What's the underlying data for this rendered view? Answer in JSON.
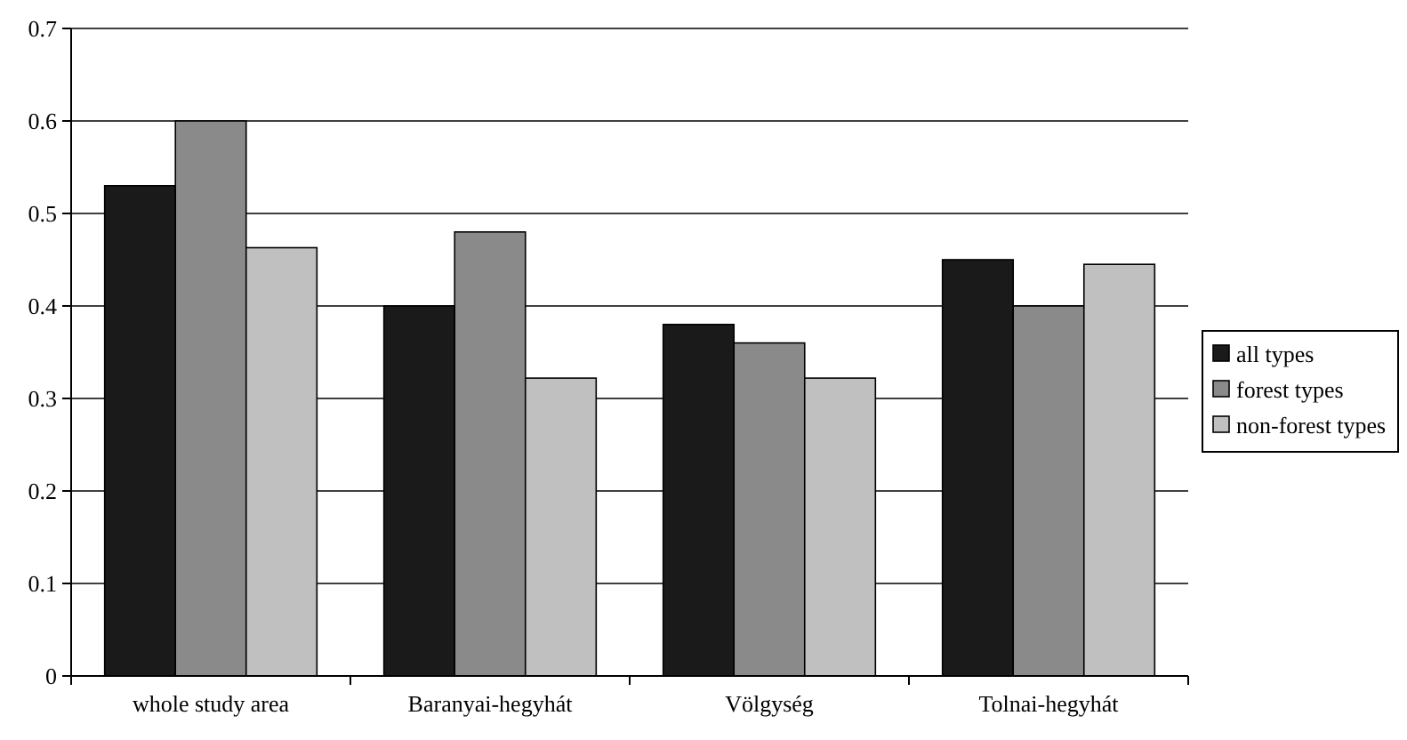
{
  "chart_data": {
    "type": "bar",
    "categories": [
      "whole study area",
      "Baranyai-hegyhát",
      "Völgység",
      "Tolnai-hegyhát"
    ],
    "series": [
      {
        "name": "all types",
        "color": "#1a1a1a",
        "values": [
          0.53,
          0.4,
          0.38,
          0.45
        ]
      },
      {
        "name": "forest types",
        "color": "#8a8a8a",
        "values": [
          0.6,
          0.48,
          0.36,
          0.4
        ]
      },
      {
        "name": "non-forest types",
        "color": "#c0c0c0",
        "values": [
          0.463,
          0.322,
          0.322,
          0.445
        ]
      }
    ],
    "ylim": [
      0,
      0.7
    ],
    "yticks": [
      0,
      0.1,
      0.2,
      0.3,
      0.4,
      0.5,
      0.6,
      0.7
    ],
    "grid": "y",
    "legend": "right"
  }
}
